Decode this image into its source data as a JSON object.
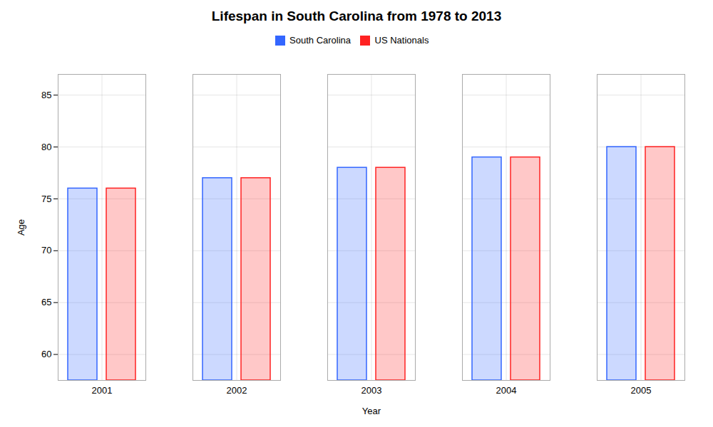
{
  "chart_data": {
    "type": "bar",
    "title": "Lifespan in South Carolina from 1978 to 2013",
    "xlabel": "Year",
    "ylabel": "Age",
    "categories": [
      "2001",
      "2002",
      "2003",
      "2004",
      "2005"
    ],
    "series": [
      {
        "name": "South Carolina",
        "color": "#3366ff",
        "values": [
          76,
          77,
          78,
          79,
          80
        ]
      },
      {
        "name": "US Nationals",
        "color": "#ff2222",
        "values": [
          76,
          77,
          78,
          79,
          80
        ]
      }
    ],
    "ylim": [
      57.5,
      87
    ],
    "yticks": [
      60,
      65,
      70,
      75,
      80,
      85
    ],
    "grid": true
  }
}
